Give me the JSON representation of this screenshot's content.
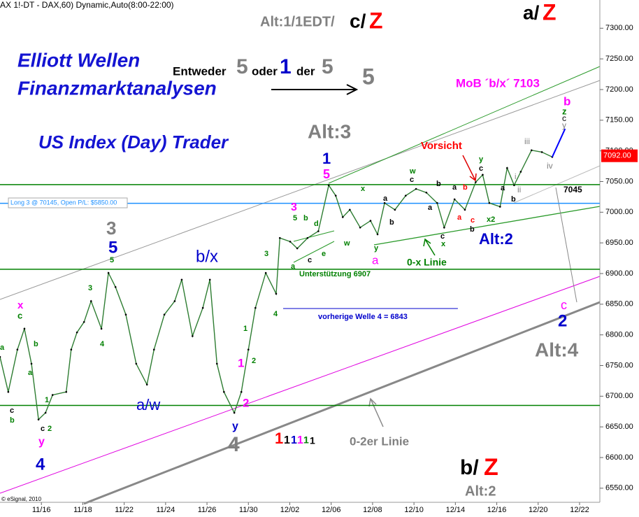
{
  "chart_data": {
    "type": "line",
    "color": "#2e7d32",
    "x": [
      -1,
      -0.8,
      -0.58,
      -0.41,
      -0.24,
      -0.07,
      0.1,
      0.27,
      0.6,
      0.72,
      0.86,
      1.03,
      1.2,
      1.45,
      1.62,
      1.79,
      2.04,
      2.29,
      2.55,
      2.72,
      2.97,
      3.22,
      3.39,
      3.65,
      3.9,
      4.07,
      4.24,
      4.41,
      4.66,
      4.83,
      5,
      5.17,
      5.42,
      5.67,
      5.76,
      6.01,
      6.18,
      6.43,
      6.69,
      6.94,
      7.11,
      7.28,
      7.45,
      7.7,
      7.95,
      8.12,
      8.29,
      8.54,
      8.8,
      9.05,
      9.3,
      9.56,
      9.73,
      9.98,
      10.23,
      10.49,
      10.66,
      10.82,
      11.08,
      11.25,
      11.42,
      11.58,
      11.84,
      12.09,
      12.34
    ],
    "values": [
      6764,
      6707,
      6776,
      6810,
      6753,
      6662,
      6673,
      6702,
      6707,
      6776,
      6804,
      6821,
      6855,
      6810,
      6901,
      6878,
      6833,
      6753,
      6719,
      6776,
      6833,
      6855,
      6890,
      6798,
      6844,
      6890,
      6753,
      6707,
      6673,
      6707,
      6776,
      6844,
      6901,
      6867,
      6958,
      6952,
      6941,
      6958,
      6969,
      7044,
      7027,
      6992,
      7004,
      6975,
      6986,
      6964,
      7015,
      7004,
      7027,
      7038,
      7032,
      7015,
      6975,
      7021,
      7004,
      7049,
      7061,
      7015,
      7009,
      7072,
      7044,
      7066,
      7101,
      7098,
      7090
    ],
    "projection": {
      "x": [
        12.34,
        12.65
      ],
      "values": [
        7090,
        7136
      ],
      "color": "#0000ff"
    },
    "xlim": [
      -1,
      13.49
    ],
    "xticks": [
      {
        "value": 0,
        "label": "11/16"
      },
      {
        "value": 1,
        "label": "11/18"
      },
      {
        "value": 2,
        "label": "11/22"
      },
      {
        "value": 3,
        "label": "11/24"
      },
      {
        "value": 4,
        "label": "11/26"
      },
      {
        "value": 5,
        "label": "11/30"
      },
      {
        "value": 6,
        "label": "12/02"
      },
      {
        "value": 7,
        "label": "12/06"
      },
      {
        "value": 8,
        "label": "12/08"
      },
      {
        "value": 9,
        "label": "12/10"
      },
      {
        "value": 10,
        "label": "12/14"
      },
      {
        "value": 11,
        "label": "12/16"
      },
      {
        "value": 12,
        "label": "12/20"
      },
      {
        "value": 13,
        "label": "12/22"
      }
    ],
    "ylim": [
      6527,
      7346
    ],
    "yticks": [
      {
        "value": 6550,
        "label": "6550.00"
      },
      {
        "value": 6600,
        "label": "6600.00"
      },
      {
        "value": 6650,
        "label": "6650.00"
      },
      {
        "value": 6700,
        "label": "6700.00"
      },
      {
        "value": 6750,
        "label": "6750.00"
      },
      {
        "value": 6800,
        "label": "6800.00"
      },
      {
        "value": 6850,
        "label": "6850.00"
      },
      {
        "value": 6900,
        "label": "6900.00"
      },
      {
        "value": 6950,
        "label": "6950.00"
      },
      {
        "value": 7000,
        "label": "7000.00"
      },
      {
        "value": 7050,
        "label": "7050.00"
      },
      {
        "value": 7100,
        "label": "7100.00"
      },
      {
        "value": 7150,
        "label": "7150.00"
      },
      {
        "value": 7200,
        "label": "7200.00"
      },
      {
        "value": 7250,
        "label": "7250.00"
      },
      {
        "value": 7300,
        "label": "7300.00"
      }
    ],
    "last": {
      "value": 7092,
      "label": "7092.00",
      "color": "#ff0000"
    },
    "levels": [
      {
        "value": 7045,
        "label": "7045",
        "color": "#008000"
      },
      {
        "value": 7014.5,
        "label": "Long 3 @ 70145, Open P/L: $5850.00",
        "color": "#1e90ff"
      },
      {
        "value": 6907,
        "label": "Unterstützung 6907",
        "color": "#008000"
      },
      {
        "value": 6843,
        "label": "vorherige Welle 4 = 6843",
        "color": "#0000cc",
        "x": [
          5.84,
          10.06
        ]
      },
      {
        "value": 6685,
        "color": "#008000"
      }
    ],
    "annotations": [
      {
        "text": "AX 1!-DT - DAX,60) Dynamic,Auto(8:00-22:00)",
        "color": "#000000"
      },
      {
        "text": "Alt:1/1EDT/",
        "color": "#808080"
      },
      {
        "text": "c/",
        "color": "#000000"
      },
      {
        "text": "Z",
        "color": "#ff0000"
      },
      {
        "text": "a/",
        "color": "#000000"
      },
      {
        "text": "Z",
        "color": "#ff0000"
      },
      {
        "text": "Elliott Wellen",
        "color": "#1414d2"
      },
      {
        "text": "Finanzmarktanalysen",
        "color": "#1414d2"
      },
      {
        "text": "US Index (Day) Trader",
        "color": "#1414d2"
      },
      {
        "text": "Entweder",
        "color": "#000000"
      },
      {
        "text": "5",
        "color": "#808080"
      },
      {
        "text": "oder",
        "color": "#000000"
      },
      {
        "text": "1",
        "color": "#0000cc"
      },
      {
        "text": "der",
        "color": "#000000"
      },
      {
        "text": "5",
        "color": "#808080"
      },
      {
        "text": "5",
        "color": "#808080"
      },
      {
        "text": "Alt:3",
        "color": "#808080"
      },
      {
        "text": "1",
        "color": "#0000cc"
      },
      {
        "text": "5",
        "color": "#ff00ff"
      },
      {
        "text": "MoB ´b/x´ 7103",
        "color": "#ff00ff"
      },
      {
        "text": "b",
        "color": "#ff00ff"
      },
      {
        "text": "z",
        "color": "#008000"
      },
      {
        "text": "c",
        "color": "#000000"
      },
      {
        "text": "y",
        "color": "#808080"
      },
      {
        "text": "Vorsicht",
        "color": "#ff0000"
      },
      {
        "text": "iii",
        "color": "#808080"
      },
      {
        "text": "iv",
        "color": "#808080"
      },
      {
        "text": "ii",
        "color": "#808080"
      },
      {
        "text": "Alt:2",
        "color": "#0000cc"
      },
      {
        "text": "0-x Linie",
        "color": "#008000"
      },
      {
        "text": "3",
        "color": "#808080"
      },
      {
        "text": "5",
        "color": "#0000cc"
      },
      {
        "text": "b/x",
        "color": "#0000cc"
      },
      {
        "text": "a/w",
        "color": "#0000cc"
      },
      {
        "text": "x",
        "color": "#ff00ff"
      },
      {
        "text": "c",
        "color": "#008000"
      },
      {
        "text": "4",
        "color": "#0000cc"
      },
      {
        "text": "y",
        "color": "#ff00ff"
      },
      {
        "text": "4",
        "color": "#808080"
      },
      {
        "text": "y",
        "color": "#0000cc"
      },
      {
        "text": "2",
        "color": "#ff00ff"
      },
      {
        "text": "1",
        "color": "#ff00ff"
      },
      {
        "text": "1",
        "color": "#ff0000"
      },
      {
        "text": "1",
        "color": "#000000"
      },
      {
        "text": "1",
        "color": "#0000cc"
      },
      {
        "text": "1",
        "color": "#ff00ff"
      },
      {
        "text": "1",
        "color": "#008000"
      },
      {
        "text": "1",
        "color": "#000000"
      },
      {
        "text": "0-2er Linie",
        "color": "#808080"
      },
      {
        "text": "b/",
        "color": "#000000"
      },
      {
        "text": "Z",
        "color": "#ff0000"
      },
      {
        "text": "Alt:2",
        "color": "#808080"
      },
      {
        "text": "Alt:4",
        "color": "#808080"
      },
      {
        "text": "c",
        "color": "#ff00ff"
      },
      {
        "text": "2",
        "color": "#0000cc"
      },
      {
        "text": "3",
        "color": "#ff00ff"
      },
      {
        "text": "a",
        "color": "#ff00ff"
      },
      {
        "text": "© eSignal, 2010",
        "color": "#000000"
      },
      {
        "text": "a",
        "color": "#008000"
      },
      {
        "text": "b",
        "color": "#008000"
      },
      {
        "text": "a",
        "color": "#008000"
      },
      {
        "text": "c",
        "color": "#000000"
      },
      {
        "text": "b",
        "color": "#008000"
      },
      {
        "text": "c",
        "color": "#000000"
      },
      {
        "text": "2",
        "color": "#008000"
      },
      {
        "text": "1",
        "color": "#008000"
      },
      {
        "text": "5",
        "color": "#008000"
      },
      {
        "text": "3",
        "color": "#008000"
      },
      {
        "text": "4",
        "color": "#008000"
      },
      {
        "text": "3",
        "color": "#008000"
      },
      {
        "text": "4",
        "color": "#008000"
      },
      {
        "text": "1",
        "color": "#008000"
      },
      {
        "text": "2",
        "color": "#008000"
      },
      {
        "text": "5",
        "color": "#008000"
      },
      {
        "text": "a",
        "color": "#008000"
      },
      {
        "text": "b",
        "color": "#008000"
      },
      {
        "text": "c",
        "color": "#000000"
      },
      {
        "text": "d",
        "color": "#008000"
      },
      {
        "text": "e",
        "color": "#008000"
      },
      {
        "text": "w",
        "color": "#008000"
      },
      {
        "text": "x",
        "color": "#008000"
      },
      {
        "text": "y",
        "color": "#008000"
      },
      {
        "text": "w",
        "color": "#008000"
      },
      {
        "text": "c",
        "color": "#000000"
      },
      {
        "text": "b",
        "color": "#000000"
      },
      {
        "text": "a",
        "color": "#000000"
      },
      {
        "text": "b",
        "color": "#000000"
      },
      {
        "text": "a",
        "color": "#000000"
      },
      {
        "text": "c",
        "color": "#000000"
      },
      {
        "text": "x",
        "color": "#008000"
      },
      {
        "text": "a",
        "color": "#000000"
      },
      {
        "text": "b",
        "color": "#ff0000"
      },
      {
        "text": "a",
        "color": "#ff0000"
      },
      {
        "text": "c",
        "color": "#ff0000"
      },
      {
        "text": "b",
        "color": "#000000"
      },
      {
        "text": "y",
        "color": "#008000"
      },
      {
        "text": "c",
        "color": "#000000"
      },
      {
        "text": "x2",
        "color": "#008000"
      },
      {
        "text": "b",
        "color": "#000000"
      },
      {
        "text": "a",
        "color": "#000000"
      },
      {
        "text": "i",
        "color": "#808080"
      }
    ]
  }
}
